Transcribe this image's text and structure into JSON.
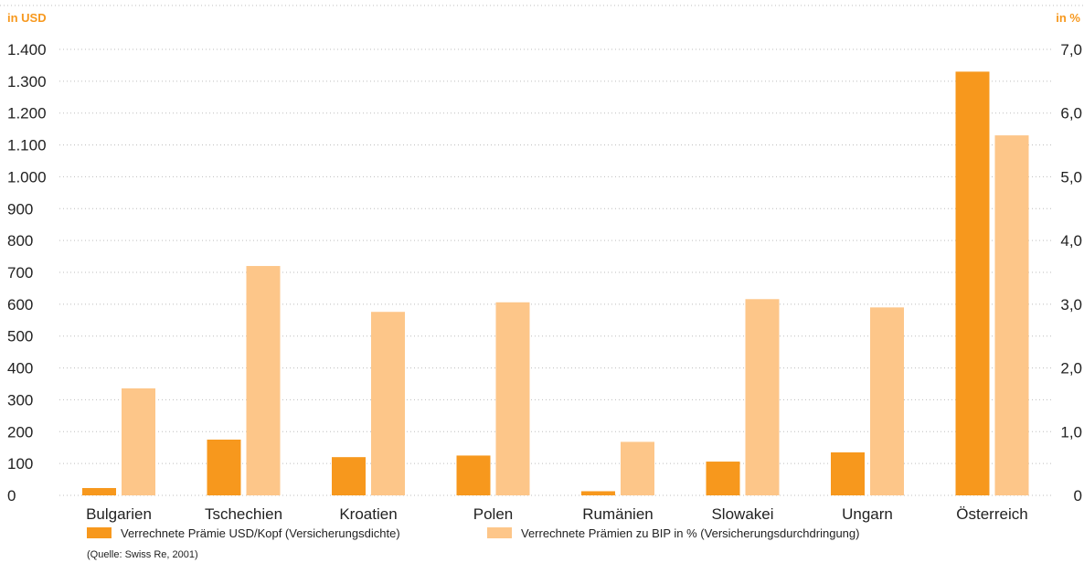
{
  "chart_data": {
    "type": "bar",
    "title": "",
    "left_axis_unit": "in USD",
    "right_axis_unit": "in %",
    "categories": [
      "Bulgarien",
      "Tschechien",
      "Kroatien",
      "Polen",
      "Rumänien",
      "Slowakei",
      "Ungarn",
      "Österreich"
    ],
    "series": [
      {
        "name": "Verrechnete Prämie USD/Kopf (Versicherungsdichte)",
        "axis": "left",
        "color": "#f7981d",
        "values": [
          23,
          175,
          120,
          125,
          13,
          106,
          135,
          1330
        ]
      },
      {
        "name": "Verrechnete Prämien zu BIP in % (Versicherungsdurchdringung)",
        "axis": "right",
        "color": "#fdc689",
        "values": [
          1.68,
          3.6,
          2.88,
          3.03,
          0.84,
          3.08,
          2.95,
          5.65
        ]
      }
    ],
    "left_axis": {
      "ylim": [
        0,
        1400
      ],
      "ticks": [
        0,
        100,
        200,
        300,
        400,
        500,
        600,
        700,
        800,
        900,
        1000,
        1100,
        1200,
        1300,
        1400
      ],
      "tick_labels": [
        "0",
        "100",
        "200",
        "300",
        "400",
        "500",
        "600",
        "700",
        "800",
        "900",
        "1.000",
        "1.100",
        "1.200",
        "1.300",
        "1.400"
      ]
    },
    "right_axis": {
      "ylim": [
        0,
        7
      ],
      "ticks": [
        0,
        1,
        2,
        3,
        4,
        5,
        6,
        7
      ],
      "tick_labels": [
        "0",
        "1,0",
        "2,0",
        "3,0",
        "4,0",
        "5,0",
        "6,0",
        "7,0"
      ]
    },
    "grid": true,
    "legend_position": "bottom",
    "source": "(Quelle: Swiss Re, 2001)"
  },
  "colors": {
    "accent": "#f7981d",
    "light": "#fdc689",
    "unit_label": "#f7981d"
  }
}
